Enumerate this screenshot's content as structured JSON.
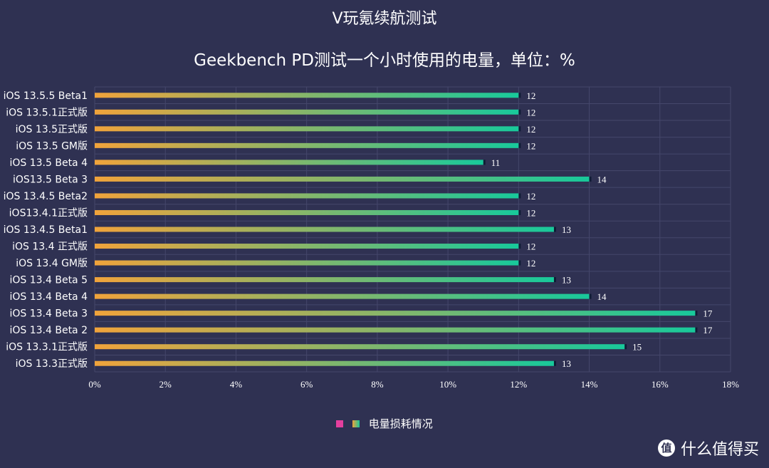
{
  "chart_data": {
    "type": "bar",
    "orientation": "horizontal",
    "title": "V玩氪续航测试",
    "subtitle": "Geekbench PD测试一个小时使用的电量，单位：%",
    "categories": [
      "iOS 13.5.5 Beta1",
      "iOS 13.5.1正式版",
      "iOS 13.5正式版",
      "iOS 13.5 GM版",
      "iOS 13.5 Beta 4",
      "iOS13.5 Beta 3",
      "iOS 13.4.5 Beta2",
      "iOS13.4.1正式版",
      "iOS 13.4.5 Beta1",
      "iOS 13.4 正式版",
      "iOS 13.4 GM版",
      "iOS 13.4 Beta 5",
      "iOS 13.4 Beta 4",
      "iOS 13.4 Beta 3",
      "iOS 13.4 Beta 2",
      "iOS 13.3.1正式版",
      "iOS 13.3正式版"
    ],
    "series": [
      {
        "name": "电量损耗情况",
        "values": [
          12,
          12,
          12,
          12,
          11,
          14,
          12,
          12,
          13,
          12,
          12,
          13,
          14,
          17,
          17,
          15,
          13
        ]
      }
    ],
    "value_labels": [
      "12",
      "12",
      "12",
      "12",
      "11",
      "14",
      "12",
      "12",
      "13",
      "12",
      "12",
      "13",
      "14",
      "17",
      "17",
      "15",
      "13"
    ],
    "x_ticks": [
      "0%",
      "2%",
      "4%",
      "6%",
      "8%",
      "10%",
      "12%",
      "14%",
      "16%",
      "18%"
    ],
    "xlim": [
      0,
      18
    ],
    "grid": true,
    "legend_position": "bottom-center",
    "legend": [
      "电量损耗情况"
    ],
    "colors": {
      "background": "#2f3152",
      "bar_start": "#f0a33b",
      "bar_end": "#18c99b",
      "grid": "#45476b",
      "text": "#ffffff",
      "legend_pink": "#e43f9e"
    }
  },
  "watermark": {
    "text": "什么值得买",
    "icon": "值"
  }
}
